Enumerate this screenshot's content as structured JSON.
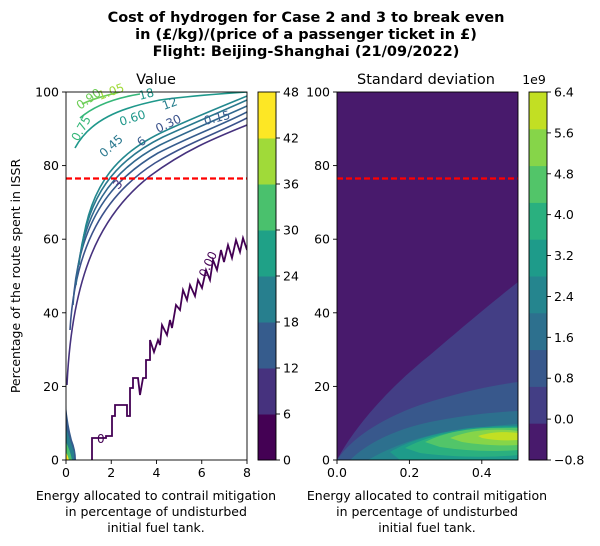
{
  "figure": {
    "title_lines": [
      "Cost of hydrogen for Case 2 and 3 to break even",
      "in (£/kg)/(price of a passenger ticket in £)",
      "Flight: Beijing-Shanghai (21/09/2022)"
    ]
  },
  "chart_data": [
    {
      "type": "contour",
      "title": "Value",
      "xlabel_lines": [
        "Energy allocated to contrail mitigation",
        "in percentage of undisturbed",
        "initial fuel tank."
      ],
      "ylabel": "Percentage of the route spent in ISSR",
      "xlim": [
        0,
        8
      ],
      "ylim": [
        0,
        100
      ],
      "xticks": [
        "0",
        "2",
        "4",
        "6",
        "8"
      ],
      "yticks": [
        "0",
        "20",
        "40",
        "60",
        "80",
        "100"
      ],
      "threshold_line_y": 76.5,
      "contour_labels": [
        "0.00",
        "0.15",
        "0.30",
        "0.45",
        "0.60",
        "0.75",
        "0.90",
        "1.05",
        "3",
        "6",
        "12",
        "18",
        "0"
      ],
      "colorbar": {
        "ticks": [
          "0",
          "6",
          "12",
          "18",
          "24",
          "30",
          "36",
          "42",
          "48"
        ],
        "colors": [
          "#440154",
          "#46327e",
          "#365c8d",
          "#277f8e",
          "#1fa187",
          "#4ac16d",
          "#a0da39",
          "#fde725"
        ]
      }
    },
    {
      "type": "filled_contour",
      "title": "Standard deviation",
      "xlabel_lines": [
        "Energy allocated to contrail mitigation",
        "in percentage of undisturbed",
        "initial fuel tank."
      ],
      "xlim": [
        0,
        0.5
      ],
      "ylim": [
        0,
        100
      ],
      "xticks": [
        "0.0",
        "0.2",
        "0.4"
      ],
      "yticks": [
        "0",
        "20",
        "40",
        "60",
        "80",
        "100"
      ],
      "threshold_line_y": 76.5,
      "colorbar": {
        "exponent": "1e9",
        "ticks": [
          "−0.8",
          "0.0",
          "0.8",
          "1.6",
          "2.4",
          "3.2",
          "4.0",
          "4.8",
          "5.6",
          "6.4"
        ],
        "colors": [
          "#481a6c",
          "#433e85",
          "#38588c",
          "#2d708e",
          "#25858e",
          "#1e9b8a",
          "#2ab07f",
          "#52c569",
          "#86d549",
          "#c2df23"
        ]
      }
    }
  ]
}
